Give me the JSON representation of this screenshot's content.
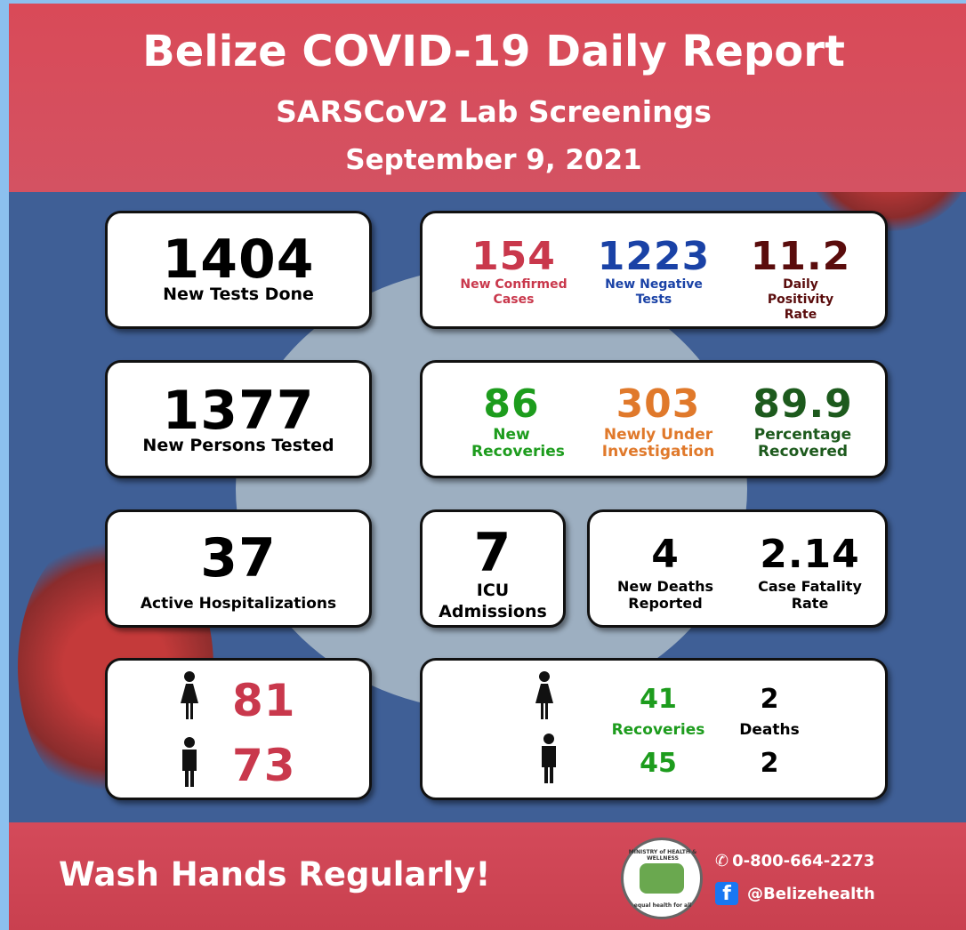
{
  "header": {
    "title": "Belize COVID-19 Daily Report",
    "subtitle": "SARSCoV2 Lab Screenings",
    "date": "September 9, 2021"
  },
  "tests": {
    "value": 1404,
    "label": "New Tests Done"
  },
  "persons": {
    "value": 1377,
    "label": "New Persons Tested"
  },
  "hospitalizations": {
    "value": 37,
    "label": "Active Hospitalizations"
  },
  "icu": {
    "value": 7,
    "label": "ICU Admissions"
  },
  "cases": [
    {
      "value": 154,
      "label": "New Confirmed Cases"
    },
    {
      "value": 1223,
      "label": "New Negative Tests"
    },
    {
      "value": 11.2,
      "label": "Daily Positivity Rate"
    }
  ],
  "recoveries": [
    {
      "value": 86,
      "label": "New Recoveries"
    },
    {
      "value": 303,
      "label": "Newly Under Investigation"
    },
    {
      "value": 89.9,
      "label": "Percentage Recovered"
    }
  ],
  "deaths": [
    {
      "value": 4,
      "label": "New Deaths Reported"
    },
    {
      "value": 2.14,
      "label": "Case Fatality Rate"
    }
  ],
  "sex_cases": {
    "female": 81,
    "male": 73
  },
  "sex_outcomes": {
    "recoveries_label": "Recoveries",
    "deaths_label": "Deaths",
    "female": {
      "recoveries": 41,
      "deaths": 2
    },
    "male": {
      "recoveries": 45,
      "deaths": 2
    }
  },
  "footer": {
    "slogan": "Wash Hands Regularly!",
    "logo_top": "MINISTRY of HEALTH & WELLNESS",
    "logo_bottom": "equal health for all",
    "phone": "0-800-664-2273",
    "facebook": "@Belizehealth"
  }
}
